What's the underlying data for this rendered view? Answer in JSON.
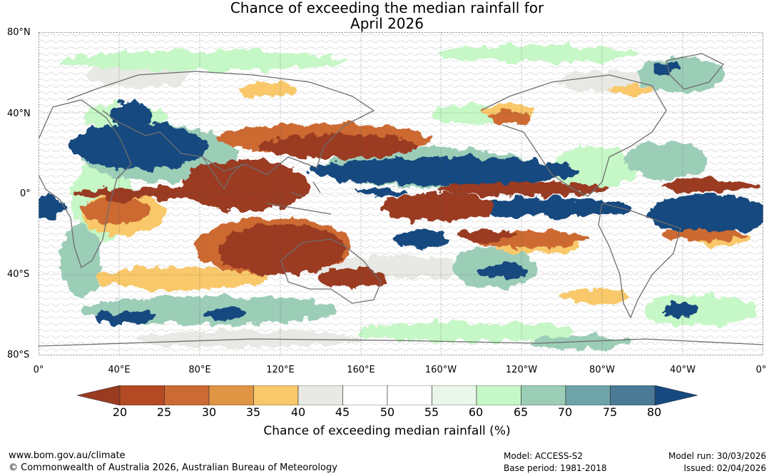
{
  "title": {
    "line1": "Chance of exceeding the median rainfall for",
    "line2": "April 2026"
  },
  "axes": {
    "latitude_labels": [
      "80°N",
      "40°N",
      "0°",
      "40°S",
      "80°S"
    ],
    "longitude_labels": [
      "0°",
      "40°E",
      "80°E",
      "120°E",
      "160°E",
      "160°W",
      "120°W",
      "80°W",
      "40°W",
      "0°"
    ]
  },
  "colorbar": {
    "label": "Chance of exceeding median rainfall (%)",
    "ticks": [
      "20",
      "25",
      "30",
      "35",
      "40",
      "45",
      "50",
      "55",
      "60",
      "65",
      "70",
      "75",
      "80"
    ],
    "colors": [
      "#9a3a20",
      "#b34a24",
      "#cc6a33",
      "#e09544",
      "#f8c86a",
      "#e8e8e4",
      "#ffffff",
      "#ffffff",
      "#e9f6e9",
      "#c6f7c6",
      "#9ccdb7",
      "#6ea3a8",
      "#4a7a96",
      "#16497f"
    ]
  },
  "footer": {
    "website": "www.bom.gov.au/climate",
    "copyright": "© Commonwealth of Australia 2026, Australian Bureau of Meteorology",
    "model": "Model: ACCESS-S2",
    "base_period": "Base period: 1981-2018",
    "model_run": "Model run: 30/03/2026",
    "issued": "Issued: 02/04/2026"
  },
  "palette": {
    "dry_strong": "#9a3a20",
    "dry": "#cc6a33",
    "dry_light": "#f8c86a",
    "neutral": "#e8e8e4",
    "wet_light": "#c6f7c6",
    "wet": "#6ea3a8",
    "wet_strong": "#16497f",
    "coastline": "#6e6e6e"
  }
}
